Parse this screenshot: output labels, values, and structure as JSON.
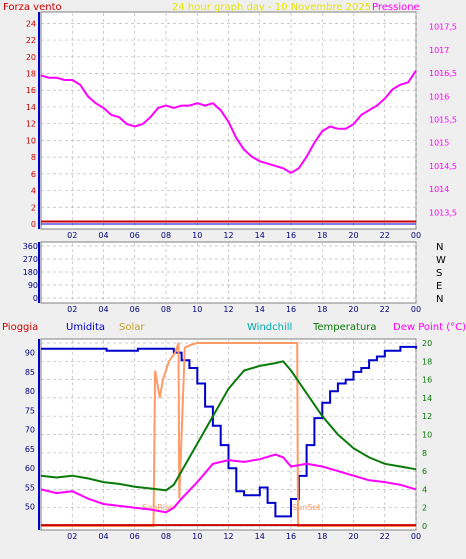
{
  "header": {
    "wind_label": "Forza vento",
    "title": "24 hour graph day - 10 Novembre 2025",
    "pressure_label": "Pressione"
  },
  "colors": {
    "background": "#efefef",
    "plot_bg": "#ffffff",
    "grid": "#b8b8b8",
    "wind": "#cc0000",
    "title": "#e6e600",
    "pressure": "#ff00ff",
    "humidity": "#0000cc",
    "solar": "#ff9966",
    "windchill": "#00aaaa",
    "temperature": "#0a7a0a",
    "dewpoint": "#ff00ff",
    "rain": "#cc0000"
  },
  "chart_data": [
    {
      "type": "line",
      "x_ticks": [
        "02",
        "04",
        "06",
        "08",
        "10",
        "12",
        "14",
        "16",
        "18",
        "20",
        "22",
        "00"
      ],
      "y_left_ticks": [
        "24",
        "22",
        "20",
        "18",
        "16",
        "14",
        "12",
        "10",
        "8",
        "6",
        "4",
        "2",
        "0"
      ],
      "y_right_ticks": [
        "1017,5",
        "1017",
        "1016,5",
        "1016",
        "1015,5",
        "1015",
        "1014,5",
        "1014",
        "1013,5"
      ],
      "ylim_left": [
        0,
        25
      ],
      "ylim_right": [
        1013.25,
        1017.75
      ],
      "grid": true,
      "series": [
        {
          "name": "Forza vento",
          "axis": "left",
          "x": [
            0,
            24
          ],
          "y": [
            0.3,
            0.3
          ]
        },
        {
          "name": "Pressione",
          "axis": "right",
          "x": [
            0,
            0.5,
            1,
            1.5,
            2,
            2.5,
            3,
            3.5,
            4,
            4.5,
            5,
            5.5,
            6,
            6.5,
            7,
            7.5,
            8,
            8.5,
            9,
            9.5,
            10,
            10.5,
            11,
            11.5,
            12,
            12.5,
            13,
            13.5,
            14,
            14.5,
            15,
            15.5,
            16,
            16.5,
            17,
            17.5,
            18,
            18.5,
            19,
            19.5,
            20,
            20.5,
            21,
            21.5,
            22,
            22.5,
            23,
            23.5,
            24
          ],
          "y": [
            1016.45,
            1016.4,
            1016.4,
            1016.35,
            1016.35,
            1016.25,
            1016.0,
            1015.85,
            1015.75,
            1015.6,
            1015.55,
            1015.4,
            1015.35,
            1015.4,
            1015.55,
            1015.75,
            1015.8,
            1015.75,
            1015.8,
            1015.8,
            1015.85,
            1015.8,
            1015.85,
            1015.7,
            1015.45,
            1015.1,
            1014.85,
            1014.7,
            1014.6,
            1014.55,
            1014.5,
            1014.45,
            1014.35,
            1014.45,
            1014.7,
            1015.0,
            1015.25,
            1015.35,
            1015.3,
            1015.3,
            1015.4,
            1015.6,
            1015.7,
            1015.8,
            1015.95,
            1016.15,
            1016.25,
            1016.3,
            1016.55
          ]
        }
      ]
    },
    {
      "type": "scatter",
      "x_ticks": [
        "02",
        "04",
        "06",
        "08",
        "10",
        "12",
        "14",
        "16",
        "18",
        "20",
        "22",
        "00"
      ],
      "y_ticks": [
        "360",
        "270",
        "180",
        "90",
        "0"
      ],
      "right_labels": [
        "N",
        "W",
        "S",
        "E",
        "N"
      ],
      "ylim": [
        0,
        360
      ],
      "grid": true,
      "series": []
    },
    {
      "type": "line",
      "legend": [
        "Pioggia",
        "Umidita",
        "Solar",
        "Windchill",
        "Temperatura",
        "Dew Point (°C)"
      ],
      "x_ticks": [
        "02",
        "04",
        "06",
        "08",
        "10",
        "12",
        "14",
        "16",
        "18",
        "20",
        "22",
        "00"
      ],
      "y_left_ticks": [
        "90",
        "85",
        "80",
        "75",
        "70",
        "65",
        "60",
        "55",
        "50"
      ],
      "y_right_ticks": [
        "20",
        "18",
        "16",
        "14",
        "12",
        "10",
        "8",
        "6",
        "4",
        "2",
        "0"
      ],
      "ylim_left": [
        45,
        92.5
      ],
      "ylim_right": [
        0,
        20
      ],
      "grid": true,
      "annotations": [
        "SunRise",
        "SunSet"
      ],
      "series": [
        {
          "name": "Umidita",
          "axis": "left",
          "x": [
            0,
            4,
            4.2,
            6,
            6.2,
            8,
            8.5,
            9,
            9.5,
            10,
            10.5,
            11,
            11.5,
            12,
            12.5,
            13,
            13.5,
            14,
            14.5,
            15,
            15.5,
            16,
            16.5,
            17,
            17.5,
            18,
            18.5,
            19,
            19.5,
            20,
            20.5,
            21,
            21.5,
            22,
            22.5,
            23,
            23.5,
            24
          ],
          "y": [
            91,
            91,
            90.5,
            90.5,
            91,
            91,
            90,
            88,
            86,
            82,
            76,
            71,
            66,
            60,
            54,
            53,
            53,
            55,
            51,
            47.5,
            47.5,
            52,
            58,
            66,
            73,
            77,
            80,
            82,
            83,
            85,
            86,
            88,
            89,
            90.5,
            90.5,
            91.5,
            91.5,
            91
          ]
        },
        {
          "name": "Solar",
          "axis": "right",
          "x": [
            0,
            7,
            7.2,
            7.3,
            7.6,
            7.8,
            8.2,
            8.6,
            8.8,
            8.85,
            9.2,
            9.6,
            10,
            11,
            12,
            13,
            14,
            15,
            16,
            16.4,
            16.45,
            16.6,
            24
          ],
          "y": [
            0,
            0,
            0,
            17,
            14,
            16,
            18,
            19,
            20,
            3,
            19.5,
            19.8,
            20,
            20,
            20,
            20,
            20,
            20,
            20,
            20,
            0,
            0,
            0
          ]
        },
        {
          "name": "Temperatura",
          "axis": "right",
          "x": [
            0,
            1,
            2,
            3,
            4,
            5,
            6,
            7,
            8,
            8.5,
            9,
            10,
            11,
            12,
            13,
            14,
            15,
            15.5,
            16,
            17,
            18,
            19,
            20,
            21,
            22,
            23,
            24
          ],
          "y": [
            5.5,
            5.3,
            5.5,
            5.2,
            4.8,
            4.6,
            4.3,
            4.1,
            3.9,
            4.5,
            6,
            9,
            12,
            15,
            17,
            17.5,
            17.8,
            18,
            17,
            14.5,
            12,
            10,
            8.5,
            7.5,
            6.8,
            6.5,
            6.2
          ]
        },
        {
          "name": "Dew Point (°C)",
          "axis": "right",
          "x": [
            0,
            1,
            2,
            3,
            4,
            5,
            6,
            7,
            8,
            8.5,
            9,
            10,
            11,
            12,
            13,
            14,
            15,
            15.5,
            16,
            17,
            18,
            19,
            20,
            21,
            22,
            23,
            24
          ],
          "y": [
            4.0,
            3.6,
            3.8,
            3.0,
            2.4,
            2.2,
            2.0,
            1.8,
            1.5,
            2.0,
            3.0,
            4.8,
            6.8,
            7.2,
            7.0,
            7.3,
            7.8,
            7.5,
            6.5,
            6.8,
            6.5,
            6.0,
            5.5,
            5.0,
            4.8,
            4.5,
            4.0
          ]
        },
        {
          "name": "Pioggia",
          "axis": "right",
          "x": [
            0,
            24
          ],
          "y": [
            0.1,
            0.1
          ]
        }
      ]
    }
  ]
}
